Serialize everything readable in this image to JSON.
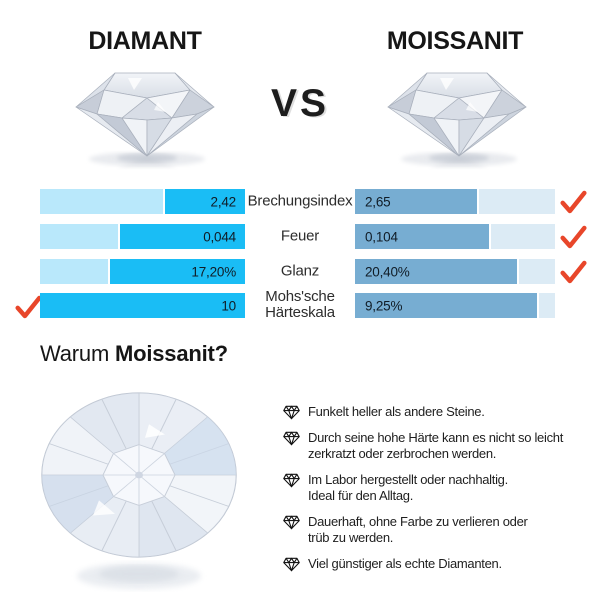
{
  "header": {
    "left_title": "DIAMANT",
    "vs": "VS",
    "right_title": "MOISSANIT"
  },
  "comparison": {
    "rows": [
      {
        "label": "Brechungsindex",
        "left": {
          "value": "2,42",
          "fill_pct": 39
        },
        "right": {
          "value": "2,65",
          "fill_pct": 61
        },
        "winner": "Moissanit"
      },
      {
        "label": "Feuer",
        "left": {
          "value": "0,044",
          "fill_pct": 61
        },
        "right": {
          "value": "0,104",
          "fill_pct": 67
        },
        "winner": "Moissanit"
      },
      {
        "label": "Glanz",
        "left": {
          "value": "17,20%",
          "fill_pct": 66
        },
        "right": {
          "value": "20,40%",
          "fill_pct": 81
        },
        "winner": "Moissanit"
      },
      {
        "label": "Mohs'sche Härteskala",
        "left": {
          "value": "10",
          "fill_pct": 100
        },
        "right": {
          "value": "9,25%",
          "fill_pct": 91
        },
        "winner": "Diamant"
      }
    ]
  },
  "why": {
    "heading_regular": "Warum",
    "heading_bold": "Moissanit?",
    "items": [
      {
        "line1": "Funkelt heller als andere Steine."
      },
      {
        "line1": "Durch seine hohe Härte kann es nicht so leicht",
        "line2": "zerkratzt oder zerbrochen werden."
      },
      {
        "line1": "Im Labor hergestellt oder nachhaltig.",
        "line2": "Ideal für den Alltag."
      },
      {
        "line1": "Dauerhaft, ohne Farbe zu verlieren oder",
        "line2": "trüb zu werden."
      },
      {
        "line1": "Viel günstiger als echte Diamanten."
      }
    ]
  },
  "colors": {
    "diamant_bar_fill": "#1abdf5",
    "diamant_bar_bg": "#b9e8fb",
    "moissanit_bar_fill": "#77add2",
    "moissanit_bar_bg": "#dcebf5",
    "check_red": "#e8462a",
    "text_dark": "#161616"
  },
  "chart_data": {
    "type": "bar",
    "orientation": "horizontal",
    "categories": [
      "Brechungsindex",
      "Feuer",
      "Glanz",
      "Mohs'sche Härteskala"
    ],
    "series": [
      {
        "name": "Diamant",
        "values": [
          2.42,
          0.044,
          17.2,
          10
        ],
        "labels": [
          "2,42",
          "0,044",
          "17,20%",
          "10"
        ]
      },
      {
        "name": "Moissanit",
        "values": [
          2.65,
          0.104,
          20.4,
          9.25
        ],
        "labels": [
          "2,65",
          "0,104",
          "20,40%",
          "9,25%"
        ]
      }
    ],
    "winner_per_category": [
      "Moissanit",
      "Moissanit",
      "Moissanit",
      "Diamant"
    ],
    "legend_position": "top-titles",
    "grid": false
  }
}
